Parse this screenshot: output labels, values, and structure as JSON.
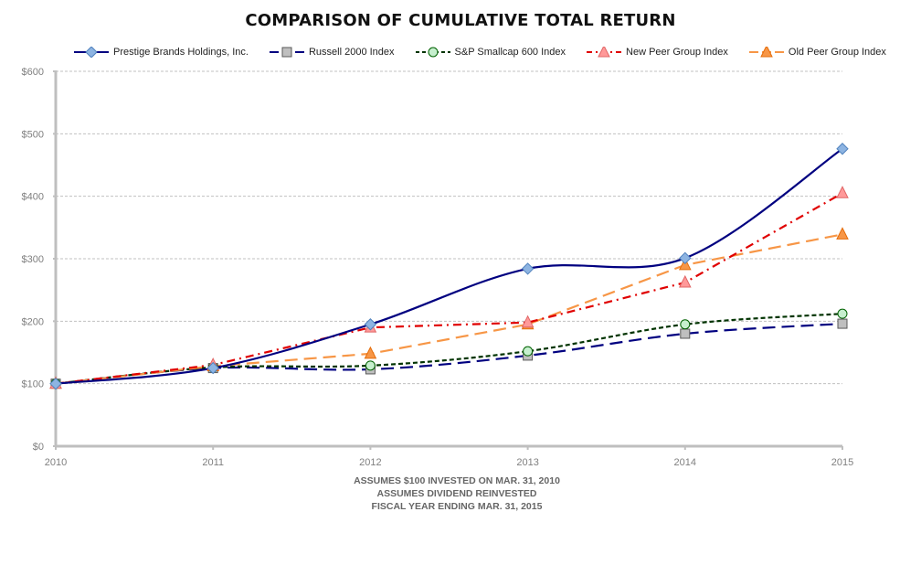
{
  "chart_data": {
    "type": "line",
    "title": "COMPARISON OF CUMULATIVE TOTAL RETURN",
    "xlabel": "",
    "ylabel": "",
    "x": [
      "2010",
      "2011",
      "2012",
      "2013",
      "2014",
      "2015"
    ],
    "ylim": [
      0,
      600
    ],
    "yticks": [
      0,
      100,
      200,
      300,
      400,
      500,
      600
    ],
    "ytick_labels": [
      "$0",
      "$100",
      "$200",
      "$300",
      "$400",
      "$500",
      "$600"
    ],
    "grid": "horizontal-dashed",
    "legend_position": "top",
    "series": [
      {
        "name": "Prestige Brands Holdings, Inc.",
        "values": [
          100,
          125,
          195,
          284,
          301,
          476
        ],
        "color": "#000080",
        "marker": "diamond",
        "marker_fill": "#8db4e2",
        "marker_stroke": "#4f81bd",
        "dash": "solid",
        "smooth": true
      },
      {
        "name": "Russell 2000 Index",
        "values": [
          100,
          125,
          123,
          145,
          180,
          196
        ],
        "color": "#000080",
        "marker": "square",
        "marker_fill": "#bfbfbf",
        "marker_stroke": "#595959",
        "dash": "longdash",
        "smooth": true
      },
      {
        "name": "S&P Smallcap 600 Index",
        "values": [
          100,
          126,
          129,
          152,
          195,
          212
        ],
        "color": "#003300",
        "marker": "circle",
        "marker_fill": "#c6efce",
        "marker_stroke": "#006100",
        "dash": "shortdash",
        "smooth": true
      },
      {
        "name": "New Peer Group Index",
        "values": [
          100,
          130,
          190,
          198,
          262,
          405
        ],
        "color": "#e00000",
        "marker": "triangle",
        "marker_fill": "#ff9999",
        "marker_stroke": "#e06666",
        "dash": "dashdot",
        "smooth": false
      },
      {
        "name": "Old Peer Group Index",
        "values": [
          100,
          128,
          148,
          195,
          290,
          339
        ],
        "color": "#f79646",
        "marker": "triangle",
        "marker_fill": "#f79646",
        "marker_stroke": "#e46c0a",
        "dash": "longdash",
        "smooth": false
      }
    ],
    "annotations": [
      "ASSUMES $100 INVESTED ON MAR. 31, 2010",
      "ASSUMES DIVIDEND REINVESTED",
      "FISCAL YEAR ENDING MAR. 31, 2015"
    ]
  }
}
